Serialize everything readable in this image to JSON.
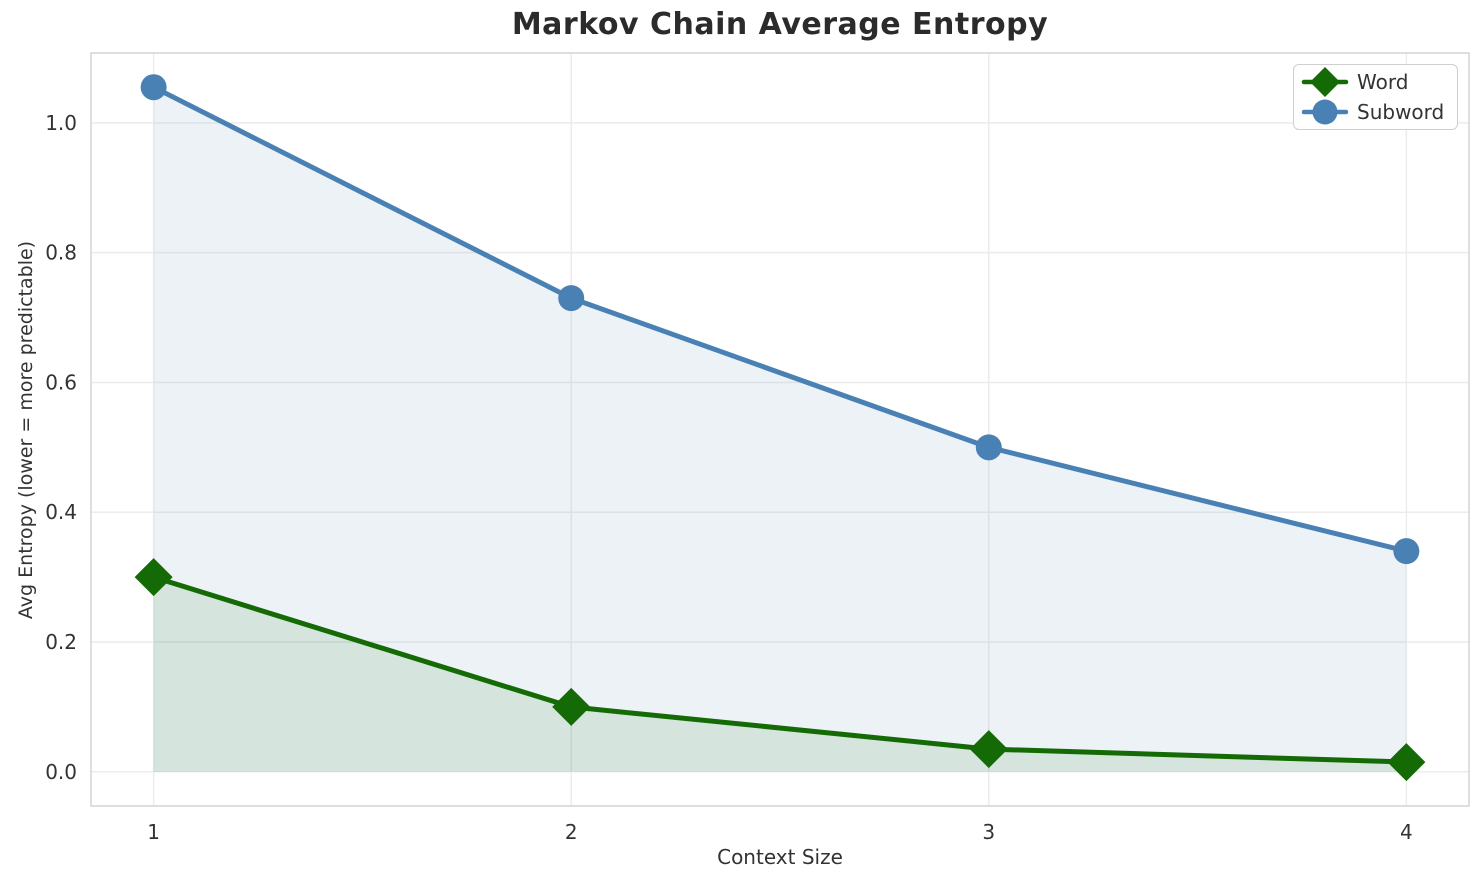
{
  "chart_data": {
    "type": "line",
    "title": "Markov Chain Average Entropy",
    "xlabel": "Context Size",
    "ylabel": "Avg Entropy (lower = more predictable)",
    "x": [
      1,
      2,
      3,
      4
    ],
    "series": [
      {
        "name": "Word",
        "values": [
          0.3,
          0.1,
          0.035,
          0.015
        ],
        "color": "#146a05",
        "marker": "diamond"
      },
      {
        "name": "Subword",
        "values": [
          1.055,
          0.73,
          0.5,
          0.34
        ],
        "color": "#4a81b4",
        "marker": "circle"
      }
    ],
    "xticks": [
      1,
      2,
      3,
      4
    ],
    "ytick_labels": [
      "0.0",
      "0.2",
      "0.4",
      "0.6",
      "0.8",
      "1.0"
    ],
    "yticks": [
      0.0,
      0.2,
      0.4,
      0.6,
      0.8,
      1.0
    ],
    "xlim": [
      0.85,
      4.15
    ],
    "ylim": [
      -0.0527,
      1.1077
    ],
    "fill_baseline": 0,
    "fill_alpha": 0.1,
    "grid": true,
    "legend_position": "upper right",
    "colors": {
      "grid": "#ececec",
      "spine": "#d4d4d4",
      "tick_text": "#333333",
      "title_text": "#2b2b2b"
    }
  }
}
